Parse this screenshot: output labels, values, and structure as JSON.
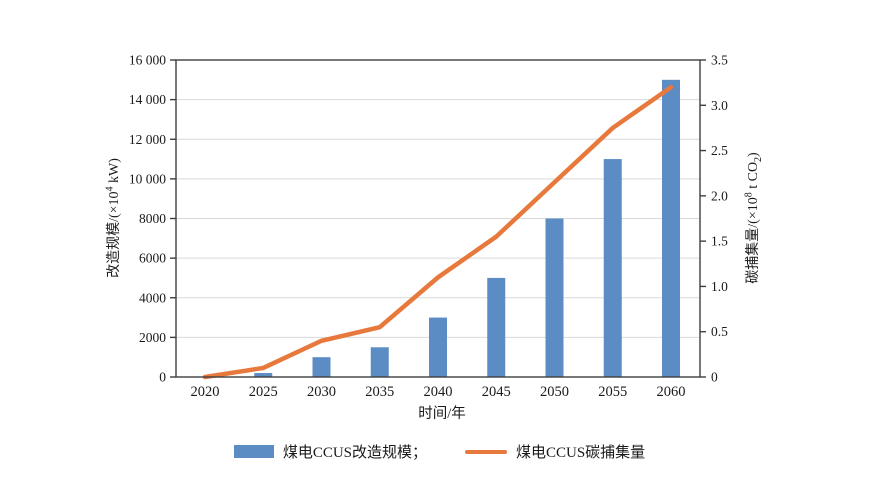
{
  "chart_data": {
    "type": "bar+line",
    "title": "",
    "categories": [
      "2020",
      "2025",
      "2030",
      "2035",
      "2040",
      "2045",
      "2050",
      "2055",
      "2060"
    ],
    "xlabel": "时间/年",
    "series": [
      {
        "name": "煤电CCUS改造规模",
        "type": "bar",
        "axis": "left",
        "legend_label": "煤电CCUS改造规模；",
        "values": [
          0,
          200,
          1000,
          1500,
          3000,
          5000,
          8000,
          11000,
          15000
        ]
      },
      {
        "name": "煤电CCUS碳捕集量",
        "type": "line",
        "axis": "right",
        "legend_label": "煤电CCUS碳捕集量",
        "values": [
          0,
          0.1,
          0.4,
          0.55,
          1.1,
          1.55,
          2.15,
          2.75,
          3.2
        ]
      }
    ],
    "left_axis": {
      "title": {
        "pre": "改造规模/(×10",
        "sup": "4",
        "post": " kW)"
      },
      "min": 0,
      "max": 16000,
      "step": 2000,
      "tick_labels": [
        "0",
        "2000",
        "4000",
        "6000",
        "8000",
        "10 000",
        "12 000",
        "14 000",
        "16 000"
      ]
    },
    "right_axis": {
      "title": {
        "pre": "碳捕集量/(×10",
        "sup": "8",
        "mid": " t CO",
        "sub": "2",
        "post": ")"
      },
      "min": 0,
      "max": 3.5,
      "step": 0.5,
      "tick_labels": [
        "0",
        "0.5",
        "1.0",
        "1.5",
        "2.0",
        "2.5",
        "3.0",
        "3.5"
      ]
    },
    "grid": "horizontal-only",
    "legend_position": "bottom-center",
    "colors": {
      "bar": "#5B8DC4",
      "line": "#E8793C",
      "grid": "#D9D9D9",
      "axis": "#3F3F3F",
      "text": "#1A1A1A"
    }
  }
}
